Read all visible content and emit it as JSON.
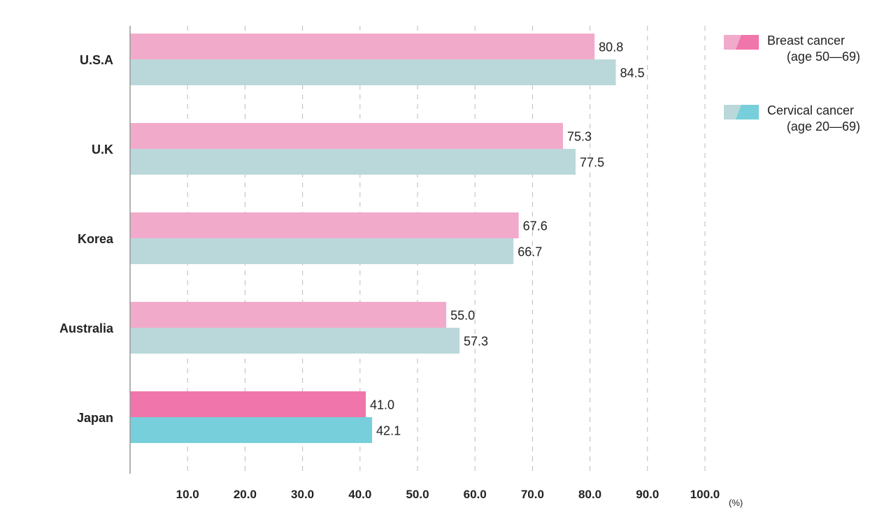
{
  "chart_data": {
    "type": "bar",
    "orientation": "horizontal",
    "categories": [
      "U.S.A",
      "U.K",
      "Korea",
      "Australia",
      "Japan"
    ],
    "highlight_category": "Japan",
    "series": [
      {
        "name": "Breast cancer",
        "name_detail": "(age 50—69)",
        "values": [
          80.8,
          75.3,
          67.6,
          55.0,
          41.0
        ],
        "value_labels": [
          "80.8",
          "75.3",
          "67.6",
          "55.0",
          "41.0"
        ],
        "color": "#f2aacb",
        "highlight_color": "#f075aa"
      },
      {
        "name": "Cervical cancer",
        "name_detail": "(age 20—69)",
        "values": [
          84.5,
          77.5,
          66.7,
          57.3,
          42.1
        ],
        "value_labels": [
          "84.5",
          "77.5",
          "66.7",
          "57.3",
          "42.1"
        ],
        "color": "#bad8da",
        "highlight_color": "#76cfda"
      }
    ],
    "xlim": [
      0,
      100
    ],
    "x_ticks": [
      "10.0",
      "20.0",
      "30.0",
      "40.0",
      "50.0",
      "60.0",
      "70.0",
      "80.0",
      "90.0",
      "100.0"
    ],
    "x_unit": "(%)",
    "grid": "dashed vertical",
    "legend_position": "top-right"
  }
}
